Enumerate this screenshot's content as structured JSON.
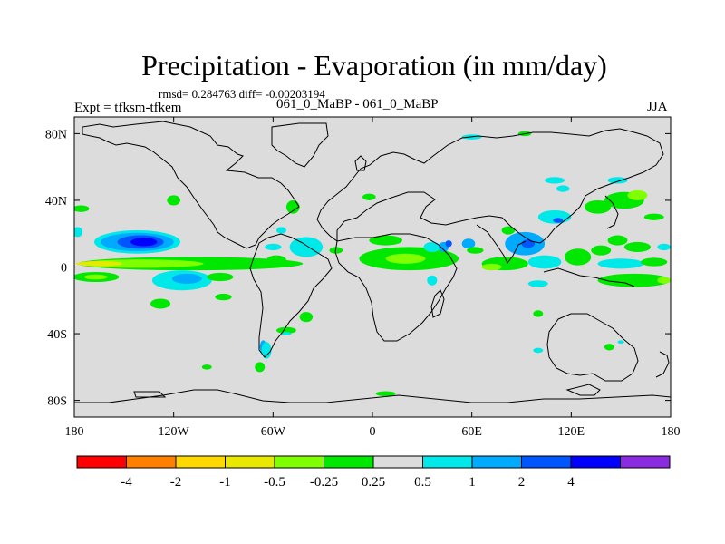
{
  "header": {
    "title": "Precipitation - Evaporation (in mm/day)",
    "stats": "rmsd= 0.284763 diff= -0.00203194",
    "experiment": "Expt = tfksm-tfkem",
    "case": "061_0_MaBP - 061_0_MaBP",
    "season": "JJA"
  },
  "chart_data": {
    "type": "heatmap",
    "title": "Precipitation - Evaporation (in mm/day)",
    "xlabel": "",
    "ylabel": "",
    "x_range": [
      -180,
      180
    ],
    "y_range": [
      -90,
      90
    ],
    "x_ticks": [
      {
        "value": -180,
        "label": "180"
      },
      {
        "value": -120,
        "label": "120W"
      },
      {
        "value": -60,
        "label": "60W"
      },
      {
        "value": 0,
        "label": "0"
      },
      {
        "value": 60,
        "label": "60E"
      },
      {
        "value": 120,
        "label": "120E"
      },
      {
        "value": 180,
        "label": "180"
      }
    ],
    "y_ticks": [
      {
        "value": 80,
        "label": "80N"
      },
      {
        "value": 40,
        "label": "40N"
      },
      {
        "value": 0,
        "label": "0"
      },
      {
        "value": -40,
        "label": "40S"
      },
      {
        "value": -80,
        "label": "80S"
      }
    ],
    "colorbar": {
      "colors": [
        "#ff0000",
        "#ff8000",
        "#ffd800",
        "#e8e800",
        "#80ff00",
        "#00e800",
        "#dcdcdc",
        "#00e8e8",
        "#00aaff",
        "#0055ff",
        "#0000ff",
        "#8a2be2"
      ],
      "levels": [
        {
          "value": -4,
          "label": "-4"
        },
        {
          "value": -2,
          "label": "-2"
        },
        {
          "value": -1,
          "label": "-1"
        },
        {
          "value": -0.5,
          "label": "-0.5"
        },
        {
          "value": -0.25,
          "label": "-0.25"
        },
        {
          "value": 0.25,
          "label": "0.25"
        },
        {
          "value": 0.5,
          "label": "0.5"
        },
        {
          "value": 1,
          "label": "1"
        },
        {
          "value": 2,
          "label": "2"
        },
        {
          "value": 4,
          "label": "4"
        }
      ]
    },
    "background_color": "#dcdcdc",
    "anomaly_blobs": [
      {
        "lon": -142,
        "lat": 15,
        "rlon": 26,
        "rlat": 7,
        "color": "#00e8e8"
      },
      {
        "lon": -142,
        "lat": 15,
        "rlon": 22,
        "rlat": 5.5,
        "color": "#00aaff"
      },
      {
        "lon": -140,
        "lat": 15,
        "rlon": 14,
        "rlat": 4,
        "color": "#0055ff"
      },
      {
        "lon": -138,
        "lat": 15,
        "rlon": 8,
        "rlat": 2.5,
        "color": "#0000ff"
      },
      {
        "lon": -178,
        "lat": 21,
        "rlon": 3,
        "rlat": 3,
        "color": "#00e8e8"
      },
      {
        "lon": -110,
        "lat": 2,
        "rlon": 68,
        "rlat": 4,
        "color": "#00e800"
      },
      {
        "lon": -140,
        "lat": 2,
        "rlon": 38,
        "rlat": 2.5,
        "color": "#80ff00"
      },
      {
        "lon": -165,
        "lat": 2,
        "rlon": 14,
        "rlat": 1.5,
        "color": "#e8e800"
      },
      {
        "lon": -167,
        "lat": -6,
        "rlon": 14,
        "rlat": 3,
        "color": "#00e800"
      },
      {
        "lon": -167,
        "lat": -6,
        "rlon": 7,
        "rlat": 1.5,
        "color": "#80ff00"
      },
      {
        "lon": -115,
        "lat": -8,
        "rlon": 18,
        "rlat": 6,
        "color": "#00e8e8"
      },
      {
        "lon": -112,
        "lat": -7,
        "rlon": 9,
        "rlat": 3,
        "color": "#00aaff"
      },
      {
        "lon": -128,
        "lat": -22,
        "rlon": 6,
        "rlat": 3,
        "color": "#00e800"
      },
      {
        "lon": -90,
        "lat": -18,
        "rlon": 5,
        "rlat": 2,
        "color": "#00e800"
      },
      {
        "lon": -92,
        "lat": -6,
        "rlon": 8,
        "rlat": 2.5,
        "color": "#00e800"
      },
      {
        "lon": -120,
        "lat": 40,
        "rlon": 4,
        "rlat": 3,
        "color": "#00e800"
      },
      {
        "lon": -176,
        "lat": 35,
        "rlon": 5,
        "rlat": 2,
        "color": "#00e800"
      },
      {
        "lon": -48,
        "lat": 36,
        "rlon": 4,
        "rlat": 4,
        "color": "#00e800"
      },
      {
        "lon": -40,
        "lat": 12,
        "rlon": 10,
        "rlat": 6,
        "color": "#00e8e8"
      },
      {
        "lon": -58,
        "lat": 4,
        "rlon": 6,
        "rlat": 3,
        "color": "#00e800"
      },
      {
        "lon": -22,
        "lat": 10,
        "rlon": 4,
        "rlat": 2,
        "color": "#00e800"
      },
      {
        "lon": -60,
        "lat": 12,
        "rlon": 5,
        "rlat": 2,
        "color": "#00e8e8"
      },
      {
        "lon": -40,
        "lat": -30,
        "rlon": 4,
        "rlat": 3,
        "color": "#00e800"
      },
      {
        "lon": -52,
        "lat": -38,
        "rlon": 6,
        "rlat": 2,
        "color": "#00e800"
      },
      {
        "lon": -52,
        "lat": -40,
        "rlon": 3,
        "rlat": 1,
        "color": "#00e8e8"
      },
      {
        "lon": -66,
        "lat": -48,
        "rlon": 2,
        "rlat": 4,
        "color": "#00aaff"
      },
      {
        "lon": -64,
        "lat": -50,
        "rlon": 3,
        "rlat": 5,
        "color": "#00e8e8"
      },
      {
        "lon": -68,
        "lat": -60,
        "rlon": 3,
        "rlat": 3,
        "color": "#00e800"
      },
      {
        "lon": 22,
        "lat": 5,
        "rlon": 30,
        "rlat": 7,
        "color": "#00e800"
      },
      {
        "lon": 20,
        "lat": 5,
        "rlon": 12,
        "rlat": 3,
        "color": "#80ff00"
      },
      {
        "lon": 8,
        "lat": 16,
        "rlon": 10,
        "rlat": 3,
        "color": "#00e800"
      },
      {
        "lon": 36,
        "lat": 12,
        "rlon": 5,
        "rlat": 3,
        "color": "#00e8e8"
      },
      {
        "lon": 43,
        "lat": 12,
        "rlon": 3,
        "rlat": 3,
        "color": "#00aaff"
      },
      {
        "lon": 36,
        "lat": -8,
        "rlon": 3,
        "rlat": 3,
        "color": "#00e8e8"
      },
      {
        "lon": 46,
        "lat": 14,
        "rlon": 2,
        "rlat": 2,
        "color": "#0055ff"
      },
      {
        "lon": -2,
        "lat": 42,
        "rlon": 4,
        "rlat": 2,
        "color": "#00e800"
      },
      {
        "lon": 58,
        "lat": 14,
        "rlon": 4,
        "rlat": 3,
        "color": "#00aaff"
      },
      {
        "lon": 62,
        "lat": 10,
        "rlon": 5,
        "rlat": 2,
        "color": "#00e800"
      },
      {
        "lon": 92,
        "lat": 14,
        "rlon": 12,
        "rlat": 7,
        "color": "#00aaff"
      },
      {
        "lon": 94,
        "lat": 14,
        "rlon": 4,
        "rlat": 2.5,
        "color": "#0055ff"
      },
      {
        "lon": 110,
        "lat": 30,
        "rlon": 10,
        "rlat": 4,
        "color": "#00e8e8"
      },
      {
        "lon": 112,
        "lat": 28,
        "rlon": 3,
        "rlat": 1.5,
        "color": "#0055ff"
      },
      {
        "lon": 82,
        "lat": 22,
        "rlon": 4,
        "rlat": 2.5,
        "color": "#00e800"
      },
      {
        "lon": 80,
        "lat": 2,
        "rlon": 14,
        "rlat": 4,
        "color": "#00e800"
      },
      {
        "lon": 72,
        "lat": 0,
        "rlon": 6,
        "rlat": 2,
        "color": "#80ff00"
      },
      {
        "lon": 104,
        "lat": 3,
        "rlon": 10,
        "rlat": 4,
        "color": "#00e8e8"
      },
      {
        "lon": 124,
        "lat": 6,
        "rlon": 8,
        "rlat": 5,
        "color": "#00e800"
      },
      {
        "lon": 138,
        "lat": 10,
        "rlon": 6,
        "rlat": 3,
        "color": "#00e800"
      },
      {
        "lon": 148,
        "lat": 16,
        "rlon": 6,
        "rlat": 3,
        "color": "#00e800"
      },
      {
        "lon": 160,
        "lat": 12,
        "rlon": 8,
        "rlat": 3,
        "color": "#00e800"
      },
      {
        "lon": 176,
        "lat": 12,
        "rlon": 4,
        "rlat": 2,
        "color": "#00e8e8"
      },
      {
        "lon": 150,
        "lat": 2,
        "rlon": 14,
        "rlat": 3,
        "color": "#00e8e8"
      },
      {
        "lon": 170,
        "lat": 3,
        "rlon": 8,
        "rlat": 2.5,
        "color": "#00e800"
      },
      {
        "lon": 158,
        "lat": -8,
        "rlon": 22,
        "rlat": 4,
        "color": "#00e800"
      },
      {
        "lon": 176,
        "lat": -8,
        "rlon": 4,
        "rlat": 2,
        "color": "#80ff00"
      },
      {
        "lon": 152,
        "lat": 40,
        "rlon": 12,
        "rlat": 5,
        "color": "#00e800"
      },
      {
        "lon": 160,
        "lat": 43,
        "rlon": 6,
        "rlat": 3,
        "color": "#80ff00"
      },
      {
        "lon": 136,
        "lat": 36,
        "rlon": 8,
        "rlat": 4,
        "color": "#00e800"
      },
      {
        "lon": 170,
        "lat": 30,
        "rlon": 6,
        "rlat": 2,
        "color": "#00e800"
      },
      {
        "lon": 110,
        "lat": 52,
        "rlon": 6,
        "rlat": 2,
        "color": "#00e8e8"
      },
      {
        "lon": 148,
        "lat": 52,
        "rlon": 6,
        "rlat": 2,
        "color": "#00e8e8"
      },
      {
        "lon": 100,
        "lat": -10,
        "rlon": 6,
        "rlat": 2,
        "color": "#00e8e8"
      },
      {
        "lon": 100,
        "lat": -28,
        "rlon": 3,
        "rlat": 2,
        "color": "#00e800"
      },
      {
        "lon": 143,
        "lat": -48,
        "rlon": 3,
        "rlat": 2,
        "color": "#00e800"
      },
      {
        "lon": 150,
        "lat": -45,
        "rlon": 2,
        "rlat": 1,
        "color": "#00e8e8"
      },
      {
        "lon": 100,
        "lat": -50,
        "rlon": 3,
        "rlat": 1.5,
        "color": "#00e8e8"
      },
      {
        "lon": 60,
        "lat": 78,
        "rlon": 6,
        "rlat": 1.5,
        "color": "#00e8e8"
      },
      {
        "lon": 92,
        "lat": 80,
        "rlon": 4,
        "rlat": 1.5,
        "color": "#00e800"
      },
      {
        "lon": 115,
        "lat": 47,
        "rlon": 4,
        "rlat": 2,
        "color": "#00e8e8"
      },
      {
        "lon": 8,
        "lat": -76,
        "rlon": 6,
        "rlat": 1.5,
        "color": "#00e800"
      },
      {
        "lon": -100,
        "lat": -60,
        "rlon": 3,
        "rlat": 1.5,
        "color": "#00e800"
      },
      {
        "lon": -55,
        "lat": 22,
        "rlon": 3,
        "rlat": 2,
        "color": "#00e8e8"
      }
    ]
  }
}
